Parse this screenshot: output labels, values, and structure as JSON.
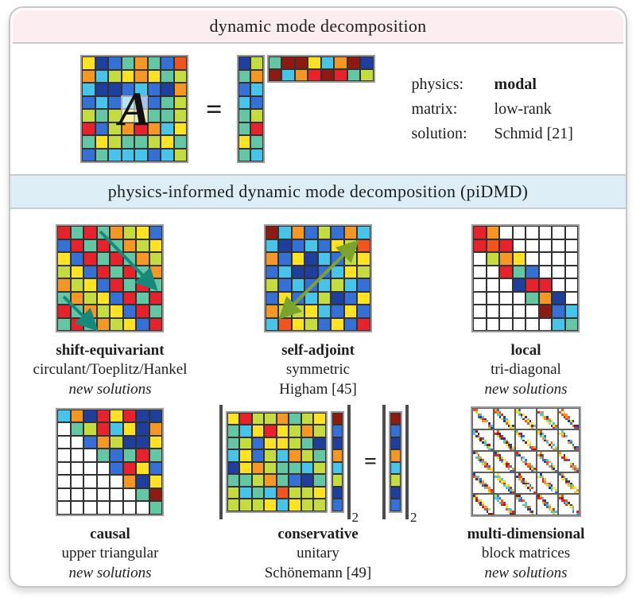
{
  "palette": {
    "db": "#1e3f9e",
    "b": "#3470d6",
    "lb": "#47c4ea",
    "t": "#62c7a2",
    "yg": "#c5dc3e",
    "y": "#ffe222",
    "o": "#f79723",
    "or": "#f2541f",
    "r": "#e8212a",
    "dr": "#8f1a12",
    "w": "#ffffff",
    "arrow_teal": "#14897c",
    "arrow_olive": "#7ca42d",
    "header_pink": "#fcedf1",
    "header_blue": "#ddeef7"
  },
  "header_top": {
    "label": "dynamic mode decomposition",
    "bg": "#fcedf1"
  },
  "header_mid": {
    "label": "physics-informed dynamic mode decomposition (piDMD)",
    "bg": "#ddeef7"
  },
  "dmd": {
    "A_label": "A",
    "equals": "=",
    "info": [
      {
        "key": "physics:",
        "value": "modal"
      },
      {
        "key": "matrix:",
        "value": "low-rank"
      },
      {
        "key": "solution:",
        "value": "Schmid [21]"
      }
    ],
    "matrix_A": [
      [
        "y",
        "db",
        "b",
        "t",
        "o",
        "t",
        "b",
        "or"
      ],
      [
        "o",
        "lb",
        "yg",
        "y",
        "o",
        "y",
        "t",
        "yg"
      ],
      [
        "lb",
        "db",
        "db",
        "b",
        "lb",
        "b",
        "db",
        "o"
      ],
      [
        "b",
        "lb",
        "b",
        "lb",
        "b",
        "b",
        "t",
        "yg"
      ],
      [
        "yg",
        "t",
        "yg",
        "y",
        "yg",
        "t",
        "t",
        "yg"
      ],
      [
        "r",
        "b",
        "yg",
        "o",
        "r",
        "o",
        "lb",
        "y"
      ],
      [
        "t",
        "y",
        "yg",
        "t",
        "t",
        "yg",
        "y",
        "t"
      ],
      [
        "b",
        "t",
        "lb",
        "lb",
        "lb",
        "b",
        "lb",
        "yg"
      ]
    ],
    "matrix_tall": [
      [
        "db",
        "yg"
      ],
      [
        "t",
        "o"
      ],
      [
        "b",
        "lb"
      ],
      [
        "lb",
        "b"
      ],
      [
        "t",
        "yg"
      ],
      [
        "t",
        "r"
      ],
      [
        "y",
        "t"
      ],
      [
        "t",
        "lb"
      ]
    ],
    "matrix_wide": [
      [
        "t",
        "dr",
        "dr",
        "y",
        "lb",
        "o",
        "dr",
        "db"
      ],
      [
        "dr",
        "lb",
        "o",
        "r",
        "dr",
        "r",
        "t",
        "yg"
      ]
    ]
  },
  "panels": [
    {
      "title": "shift-equivariant",
      "subtitle": "circulant/Toeplitz/Hankel",
      "note": "new solutions",
      "matrix": [
        [
          "r",
          "t",
          "r",
          "t",
          "o",
          "yg",
          "y",
          "b"
        ],
        [
          "b",
          "r",
          "t",
          "r",
          "t",
          "o",
          "yg",
          "y"
        ],
        [
          "y",
          "b",
          "r",
          "t",
          "r",
          "t",
          "o",
          "yg"
        ],
        [
          "yg",
          "y",
          "b",
          "r",
          "t",
          "r",
          "t",
          "o"
        ],
        [
          "o",
          "yg",
          "y",
          "b",
          "r",
          "t",
          "r",
          "t"
        ],
        [
          "t",
          "o",
          "yg",
          "y",
          "b",
          "r",
          "t",
          "r"
        ],
        [
          "r",
          "t",
          "o",
          "yg",
          "y",
          "b",
          "r",
          "t"
        ],
        [
          "t",
          "r",
          "t",
          "o",
          "yg",
          "y",
          "b",
          "r"
        ]
      ]
    },
    {
      "title": "self-adjoint",
      "subtitle": "symmetric",
      "note": "Higham [45]",
      "matrix": [
        [
          "dr",
          "lb",
          "o",
          "b",
          "yg",
          "b",
          "o",
          "lb"
        ],
        [
          "lb",
          "db",
          "b",
          "lb",
          "b",
          "y",
          "yg",
          "or"
        ],
        [
          "o",
          "b",
          "y",
          "db",
          "lb",
          "b",
          "yg",
          "y"
        ],
        [
          "b",
          "lb",
          "db",
          "db",
          "b",
          "lb",
          "y",
          "yg"
        ],
        [
          "yg",
          "b",
          "lb",
          "b",
          "lb",
          "yg",
          "lb",
          "b"
        ],
        [
          "b",
          "y",
          "b",
          "lb",
          "yg",
          "db",
          "b",
          "y"
        ],
        [
          "o",
          "yg",
          "yg",
          "y",
          "lb",
          "b",
          "y",
          "b"
        ],
        [
          "lb",
          "or",
          "y",
          "yg",
          "b",
          "y",
          "b",
          "r"
        ]
      ]
    },
    {
      "title": "local",
      "subtitle": "tri-diagonal",
      "note": "new solutions",
      "matrix": [
        [
          "r",
          "o",
          "w",
          "w",
          "w",
          "w",
          "w",
          "w"
        ],
        [
          "r",
          "or",
          "r",
          "w",
          "w",
          "w",
          "w",
          "w"
        ],
        [
          "w",
          "yg",
          "o",
          "y",
          "w",
          "w",
          "w",
          "w"
        ],
        [
          "w",
          "w",
          "r",
          "t",
          "b",
          "w",
          "w",
          "w"
        ],
        [
          "w",
          "w",
          "w",
          "db",
          "r",
          "r",
          "w",
          "w"
        ],
        [
          "w",
          "w",
          "w",
          "w",
          "t",
          "o",
          "db",
          "w"
        ],
        [
          "w",
          "w",
          "w",
          "w",
          "w",
          "dr",
          "b",
          "lb"
        ],
        [
          "w",
          "w",
          "w",
          "w",
          "w",
          "w",
          "lb",
          "t"
        ]
      ]
    },
    {
      "title": "causal",
      "subtitle": "upper triangular",
      "note": "new solutions",
      "matrix": [
        [
          "lb",
          "o",
          "db",
          "r",
          "y",
          "r",
          "db",
          "db"
        ],
        [
          "w",
          "t",
          "yg",
          "r",
          "lb",
          "y",
          "db",
          "o"
        ],
        [
          "w",
          "w",
          "b",
          "o",
          "yg",
          "db",
          "db",
          "y"
        ],
        [
          "w",
          "w",
          "w",
          "t",
          "b",
          "t",
          "r",
          "t"
        ],
        [
          "w",
          "w",
          "w",
          "w",
          "b",
          "r",
          "y",
          "b"
        ],
        [
          "w",
          "w",
          "w",
          "w",
          "w",
          "o",
          "db",
          "y"
        ],
        [
          "w",
          "w",
          "w",
          "w",
          "w",
          "w",
          "t",
          "dr"
        ],
        [
          "w",
          "w",
          "w",
          "w",
          "w",
          "w",
          "w",
          "t"
        ]
      ]
    },
    {
      "title": "conservative",
      "subtitle": "unitary",
      "note": "Schönemann [49]",
      "equals": "=",
      "norm_sub": "2",
      "matrix": [
        [
          "y",
          "r",
          "yg",
          "yg",
          "o",
          "t",
          "yg",
          "y"
        ],
        [
          "t",
          "lb",
          "y",
          "r",
          "y",
          "yg",
          "o",
          "yg"
        ],
        [
          "t",
          "yg",
          "b",
          "y",
          "y",
          "yg",
          "t",
          "db"
        ],
        [
          "lb",
          "y",
          "b",
          "yg",
          "lb",
          "o",
          "yg",
          "t"
        ],
        [
          "db",
          "y",
          "o",
          "yg",
          "t",
          "t",
          "lb",
          "yg"
        ],
        [
          "t",
          "t",
          "yg",
          "o",
          "t",
          "b",
          "db",
          "t"
        ],
        [
          "yg",
          "lb",
          "t",
          "lb",
          "or",
          "yg",
          "yg",
          "y"
        ],
        [
          "yg",
          "yg",
          "yg",
          "y",
          "lb",
          "y",
          "yg",
          "yg"
        ]
      ],
      "vector": [
        [
          "dr"
        ],
        [
          "b"
        ],
        [
          "db"
        ],
        [
          "o"
        ],
        [
          "lb"
        ],
        [
          "yg"
        ],
        [
          "db"
        ],
        [
          "b"
        ]
      ]
    },
    {
      "title": "multi-dimensional",
      "subtitle": "block matrices",
      "note": "new solutions",
      "pattern": {
        "grid": 5,
        "inner": 9,
        "band": 1,
        "seed": 7,
        "skip": 0.15,
        "colors": [
          "r",
          "o",
          "y",
          "yg",
          "t",
          "lb",
          "b",
          "db",
          "dr",
          "or"
        ]
      }
    }
  ]
}
